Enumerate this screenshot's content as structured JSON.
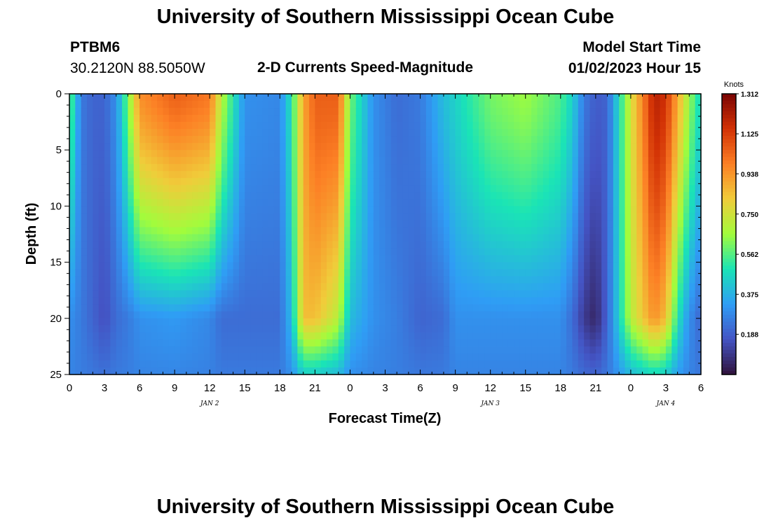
{
  "header": {
    "title": "University of Southern Mississippi Ocean Cube",
    "station_id": "PTBM6",
    "station_coords": "30.2120N  88.5050W",
    "product": "2-D Currents Speed-Magnitude",
    "model_start_label": "Model Start Time",
    "model_start_value": "01/02/2023 Hour 15"
  },
  "footer": {
    "title": "University of Southern Mississippi Ocean Cube"
  },
  "chart_data": {
    "type": "heatmap",
    "title": "2-D Currents Speed-Magnitude",
    "xlabel": "Forecast Time(Z)",
    "ylabel": "Depth (ft)",
    "x_range_hours": [
      0,
      54
    ],
    "y_range": [
      0,
      25
    ],
    "y_reversed": true,
    "x_tick_labels": [
      "0",
      "3",
      "6",
      "9",
      "12",
      "15",
      "18",
      "21",
      "0",
      "3",
      "6",
      "9",
      "12",
      "15",
      "18",
      "21",
      "0",
      "3",
      "6"
    ],
    "y_tick_labels": [
      "0",
      "5",
      "10",
      "15",
      "20",
      "25"
    ],
    "date_labels": [
      {
        "text": "JAN 2",
        "hour": 12
      },
      {
        "text": "JAN 3",
        "hour": 36
      },
      {
        "text": "JAN 4",
        "hour": 51
      }
    ],
    "colorbar": {
      "unit": "Knots",
      "min": 0,
      "max": 1.312,
      "tick_labels": [
        "1.312",
        "1.125",
        "0.938",
        "0.750",
        "0.562",
        "0.375",
        "0.188"
      ],
      "colors": [
        "#30123b",
        "#4454c4",
        "#2f9df5",
        "#1ae4b6",
        "#a2fc3c",
        "#f0cc3a",
        "#fc8025",
        "#d23105",
        "#7a0403"
      ]
    },
    "speed_profile_knots": {
      "description": "approximate current speed (knots) vs forecast hour; surface value and value at 20 ft depth",
      "hours": [
        0,
        1,
        2,
        3,
        4,
        5,
        6,
        9,
        12,
        13,
        15,
        18,
        19,
        20,
        21,
        23,
        24,
        26,
        28,
        30,
        32,
        33,
        36,
        39,
        42,
        43,
        44,
        45,
        46,
        48,
        50,
        51,
        52,
        53,
        54
      ],
      "surface": [
        0.6,
        0.25,
        0.2,
        0.2,
        0.3,
        0.6,
        0.95,
        1.05,
        1.0,
        0.7,
        0.3,
        0.28,
        0.5,
        0.9,
        1.05,
        1.05,
        0.6,
        0.3,
        0.22,
        0.25,
        0.4,
        0.45,
        0.6,
        0.65,
        0.55,
        0.45,
        0.25,
        0.18,
        0.2,
        0.75,
        1.2,
        1.15,
        0.9,
        0.65,
        0.45
      ],
      "depth_20ft": [
        0.3,
        0.25,
        0.2,
        0.15,
        0.22,
        0.25,
        0.3,
        0.32,
        0.28,
        0.22,
        0.22,
        0.22,
        0.4,
        0.85,
        0.85,
        0.7,
        0.4,
        0.3,
        0.26,
        0.2,
        0.22,
        0.3,
        0.3,
        0.3,
        0.3,
        0.22,
        0.1,
        0.05,
        0.2,
        0.7,
        0.95,
        0.85,
        0.5,
        0.3,
        0.2
      ]
    }
  }
}
